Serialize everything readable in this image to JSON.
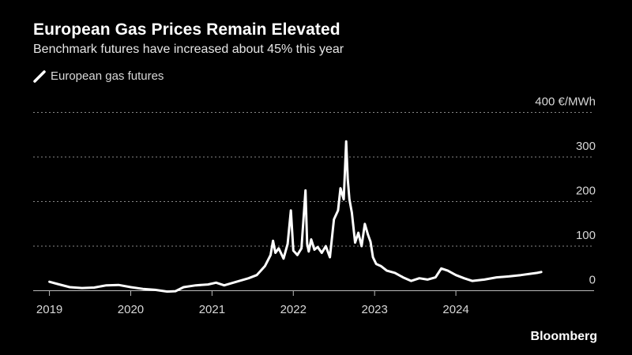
{
  "header": {
    "title": "European Gas Prices Remain Elevated",
    "subtitle": "Benchmark futures have increased about 45% this year"
  },
  "legend": {
    "label": "European gas futures"
  },
  "footer": {
    "brand": "Bloomberg"
  },
  "colors": {
    "background": "#000000",
    "line": "#ffffff",
    "grid": "#888888",
    "text": "#d8d8d8"
  },
  "chart_data": {
    "type": "line",
    "title": "European Gas Prices Remain Elevated",
    "subtitle": "Benchmark futures have increased about 45% this year",
    "xlabel": "",
    "ylabel": "",
    "y_unit": "€/MWh",
    "y_ticks": [
      0,
      100,
      200,
      300,
      400
    ],
    "y_tick_labels": [
      "0",
      "100",
      "200",
      "300",
      "400 €/MWh"
    ],
    "x_tick_labels": [
      "2019",
      "2020",
      "2021",
      "2022",
      "2023",
      "2024"
    ],
    "x_ticks": [
      2019,
      2020,
      2021,
      2022,
      2023,
      2024
    ],
    "xlim": [
      2018.8,
      2025.7
    ],
    "ylim": [
      -30,
      400
    ],
    "grid": true,
    "legend_position": "top-left",
    "series": [
      {
        "name": "European gas futures",
        "x": [
          2019.0,
          2019.1,
          2019.25,
          2019.4,
          2019.55,
          2019.7,
          2019.85,
          2020.0,
          2020.15,
          2020.3,
          2020.45,
          2020.55,
          2020.65,
          2020.8,
          2020.95,
          2021.05,
          2021.15,
          2021.3,
          2021.45,
          2021.55,
          2021.65,
          2021.72,
          2021.75,
          2021.78,
          2021.82,
          2021.88,
          2021.93,
          2021.97,
          2022.0,
          2022.05,
          2022.1,
          2022.15,
          2022.17,
          2022.19,
          2022.22,
          2022.26,
          2022.3,
          2022.35,
          2022.4,
          2022.45,
          2022.5,
          2022.55,
          2022.58,
          2022.62,
          2022.65,
          2022.67,
          2022.69,
          2022.72,
          2022.76,
          2022.8,
          2022.84,
          2022.88,
          2022.92,
          2022.95,
          2022.98,
          2023.02,
          2023.08,
          2023.15,
          2023.25,
          2023.35,
          2023.45,
          2023.55,
          2023.65,
          2023.75,
          2023.82,
          2023.9,
          2024.0,
          2024.1,
          2024.2,
          2024.35,
          2024.5,
          2024.65,
          2024.8,
          2024.92,
          2025.0,
          2025.05
        ],
        "values": [
          20,
          15,
          8,
          6,
          7,
          12,
          13,
          8,
          4,
          2,
          -2,
          -1,
          8,
          12,
          14,
          18,
          12,
          20,
          28,
          35,
          55,
          80,
          112,
          85,
          95,
          72,
          105,
          180,
          90,
          80,
          95,
          225,
          105,
          88,
          115,
          92,
          98,
          85,
          100,
          75,
          160,
          180,
          230,
          205,
          335,
          250,
          205,
          175,
          108,
          130,
          100,
          150,
          125,
          110,
          75,
          60,
          55,
          45,
          40,
          30,
          22,
          28,
          25,
          30,
          50,
          45,
          35,
          28,
          22,
          25,
          30,
          32,
          35,
          38,
          40,
          42
        ]
      }
    ]
  }
}
